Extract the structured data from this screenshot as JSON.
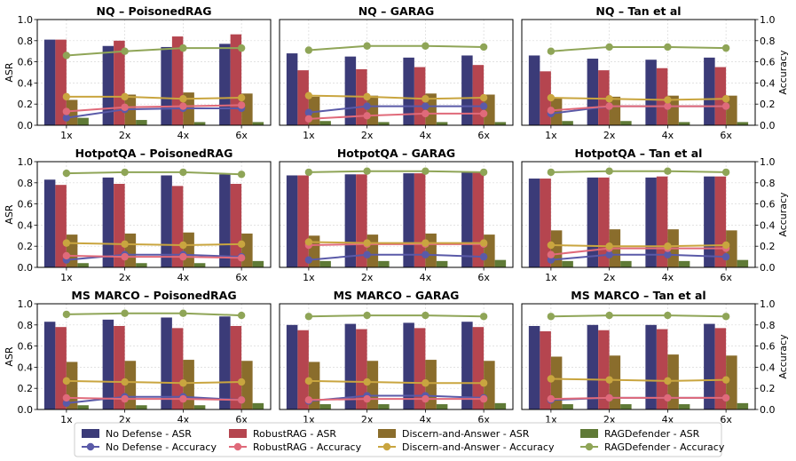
{
  "chart_data": {
    "type": "bar",
    "categories": [
      "1x",
      "2x",
      "4x",
      "6x"
    ],
    "left_axis": {
      "label": "ASR",
      "ylim": [
        0,
        1.0
      ],
      "ticks": [
        "0.0",
        "0.2",
        "0.4",
        "0.6",
        "0.8",
        "1.0"
      ]
    },
    "right_axis": {
      "label": "Accuracy",
      "ylim": [
        0,
        1.0
      ],
      "ticks": [
        "0.0",
        "0.2",
        "0.4",
        "0.6",
        "0.8",
        "1.0"
      ]
    },
    "colors": {
      "no_defense": "#3b3b78",
      "robustrag": "#b5454f",
      "discern": "#8a6d2c",
      "ragdefender": "#5f7a36",
      "no_defense_line": "#5a5aa8",
      "robustrag_line": "#e06a7a",
      "discern_line": "#c9a53f",
      "ragdefender_line": "#8fa557"
    },
    "legend": [
      {
        "label": "No Defense - ASR",
        "kind": "bar",
        "color": "no_defense"
      },
      {
        "label": "RobustRAG - ASR",
        "kind": "bar",
        "color": "robustrag"
      },
      {
        "label": "Discern-and-Answer - ASR",
        "kind": "bar",
        "color": "discern"
      },
      {
        "label": "RAGDefender - ASR",
        "kind": "bar",
        "color": "ragdefender"
      },
      {
        "label": "No Defense - Accuracy",
        "kind": "line",
        "color": "no_defense_line"
      },
      {
        "label": "RobustRAG - Accuracy",
        "kind": "line",
        "color": "robustrag_line"
      },
      {
        "label": "Discern-and-Answer - Accuracy",
        "kind": "line",
        "color": "discern_line"
      },
      {
        "label": "RAGDefender - Accuracy",
        "kind": "line",
        "color": "ragdefender_line"
      }
    ],
    "panels": [
      {
        "title": "NQ – PoisonedRAG",
        "asr": {
          "no_defense": [
            0.81,
            0.75,
            0.74,
            0.77
          ],
          "robustrag": [
            0.81,
            0.8,
            0.84,
            0.86
          ],
          "discern": [
            0.24,
            0.29,
            0.31,
            0.3
          ],
          "ragdefender": [
            0.07,
            0.05,
            0.03,
            0.03
          ]
        },
        "accuracy": {
          "no_defense": [
            0.07,
            0.15,
            0.16,
            0.16
          ],
          "robustrag": [
            0.13,
            0.17,
            0.18,
            0.19
          ],
          "discern": [
            0.27,
            0.27,
            0.25,
            0.26
          ],
          "ragdefender": [
            0.66,
            0.7,
            0.73,
            0.73
          ]
        }
      },
      {
        "title": "NQ – GARAG",
        "asr": {
          "no_defense": [
            0.68,
            0.65,
            0.64,
            0.66
          ],
          "robustrag": [
            0.52,
            0.53,
            0.55,
            0.57
          ],
          "discern": [
            0.27,
            0.28,
            0.3,
            0.29
          ],
          "ragdefender": [
            0.04,
            0.03,
            0.03,
            0.03
          ]
        },
        "accuracy": {
          "no_defense": [
            0.12,
            0.18,
            0.18,
            0.18
          ],
          "robustrag": [
            0.06,
            0.09,
            0.11,
            0.11
          ],
          "discern": [
            0.28,
            0.27,
            0.25,
            0.26
          ],
          "ragdefender": [
            0.71,
            0.75,
            0.75,
            0.74
          ]
        }
      },
      {
        "title": "NQ – Tan et al",
        "asr": {
          "no_defense": [
            0.66,
            0.63,
            0.62,
            0.64
          ],
          "robustrag": [
            0.51,
            0.52,
            0.54,
            0.55
          ],
          "discern": [
            0.26,
            0.27,
            0.28,
            0.28
          ],
          "ragdefender": [
            0.04,
            0.04,
            0.03,
            0.03
          ]
        },
        "accuracy": {
          "no_defense": [
            0.11,
            0.18,
            0.18,
            0.18
          ],
          "robustrag": [
            0.14,
            0.18,
            0.18,
            0.18
          ],
          "discern": [
            0.26,
            0.25,
            0.24,
            0.25
          ],
          "ragdefender": [
            0.7,
            0.74,
            0.74,
            0.73
          ]
        }
      },
      {
        "title": "HotpotQA – PoisonedRAG",
        "asr": {
          "no_defense": [
            0.83,
            0.85,
            0.87,
            0.88
          ],
          "robustrag": [
            0.78,
            0.79,
            0.77,
            0.79
          ],
          "discern": [
            0.31,
            0.32,
            0.33,
            0.32
          ],
          "ragdefender": [
            0.04,
            0.04,
            0.04,
            0.06
          ]
        },
        "accuracy": {
          "no_defense": [
            0.07,
            0.12,
            0.12,
            0.1
          ],
          "robustrag": [
            0.11,
            0.1,
            0.1,
            0.09
          ],
          "discern": [
            0.23,
            0.22,
            0.21,
            0.22
          ],
          "ragdefender": [
            0.89,
            0.9,
            0.9,
            0.88
          ]
        }
      },
      {
        "title": "HotpotQA – GARAG",
        "asr": {
          "no_defense": [
            0.87,
            0.88,
            0.89,
            0.9
          ],
          "robustrag": [
            0.87,
            0.88,
            0.89,
            0.9
          ],
          "discern": [
            0.3,
            0.31,
            0.32,
            0.31
          ],
          "ragdefender": [
            0.06,
            0.06,
            0.06,
            0.07
          ]
        },
        "accuracy": {
          "no_defense": [
            0.07,
            0.12,
            0.12,
            0.1
          ],
          "robustrag": [
            0.21,
            0.22,
            0.22,
            0.22
          ],
          "discern": [
            0.24,
            0.23,
            0.23,
            0.23
          ],
          "ragdefender": [
            0.9,
            0.91,
            0.91,
            0.9
          ]
        }
      },
      {
        "title": "HotpotQA – Tan et al",
        "asr": {
          "no_defense": [
            0.84,
            0.85,
            0.85,
            0.86
          ],
          "robustrag": [
            0.84,
            0.85,
            0.86,
            0.86
          ],
          "discern": [
            0.35,
            0.36,
            0.36,
            0.35
          ],
          "ragdefender": [
            0.06,
            0.06,
            0.06,
            0.07
          ]
        },
        "accuracy": {
          "no_defense": [
            0.07,
            0.12,
            0.12,
            0.1
          ],
          "robustrag": [
            0.12,
            0.18,
            0.18,
            0.18
          ],
          "discern": [
            0.21,
            0.2,
            0.2,
            0.21
          ],
          "ragdefender": [
            0.9,
            0.91,
            0.91,
            0.9
          ]
        }
      },
      {
        "title": "MS MARCO – PoisonedRAG",
        "asr": {
          "no_defense": [
            0.83,
            0.85,
            0.87,
            0.88
          ],
          "robustrag": [
            0.78,
            0.79,
            0.77,
            0.79
          ],
          "discern": [
            0.45,
            0.46,
            0.47,
            0.46
          ],
          "ragdefender": [
            0.04,
            0.04,
            0.04,
            0.06
          ]
        },
        "accuracy": {
          "no_defense": [
            0.06,
            0.12,
            0.12,
            0.09
          ],
          "robustrag": [
            0.11,
            0.1,
            0.1,
            0.09
          ],
          "discern": [
            0.27,
            0.26,
            0.25,
            0.26
          ],
          "ragdefender": [
            0.9,
            0.91,
            0.91,
            0.89
          ]
        }
      },
      {
        "title": "MS MARCO – GARAG",
        "asr": {
          "no_defense": [
            0.8,
            0.81,
            0.82,
            0.83
          ],
          "robustrag": [
            0.75,
            0.76,
            0.77,
            0.78
          ],
          "discern": [
            0.45,
            0.46,
            0.47,
            0.46
          ],
          "ragdefender": [
            0.05,
            0.05,
            0.05,
            0.06
          ]
        },
        "accuracy": {
          "no_defense": [
            0.08,
            0.13,
            0.13,
            0.11
          ],
          "robustrag": [
            0.09,
            0.1,
            0.1,
            0.1
          ],
          "discern": [
            0.27,
            0.26,
            0.25,
            0.25
          ],
          "ragdefender": [
            0.88,
            0.89,
            0.89,
            0.88
          ]
        }
      },
      {
        "title": "MS MARCO – Tan et al",
        "asr": {
          "no_defense": [
            0.79,
            0.8,
            0.8,
            0.81
          ],
          "robustrag": [
            0.74,
            0.75,
            0.76,
            0.77
          ],
          "discern": [
            0.5,
            0.51,
            0.52,
            0.51
          ],
          "ragdefender": [
            0.05,
            0.05,
            0.05,
            0.06
          ]
        },
        "accuracy": {
          "no_defense": [
            0.09,
            0.11,
            0.11,
            0.11
          ],
          "robustrag": [
            0.1,
            0.11,
            0.11,
            0.11
          ],
          "discern": [
            0.29,
            0.28,
            0.27,
            0.28
          ],
          "ragdefender": [
            0.88,
            0.89,
            0.89,
            0.88
          ]
        }
      }
    ]
  }
}
